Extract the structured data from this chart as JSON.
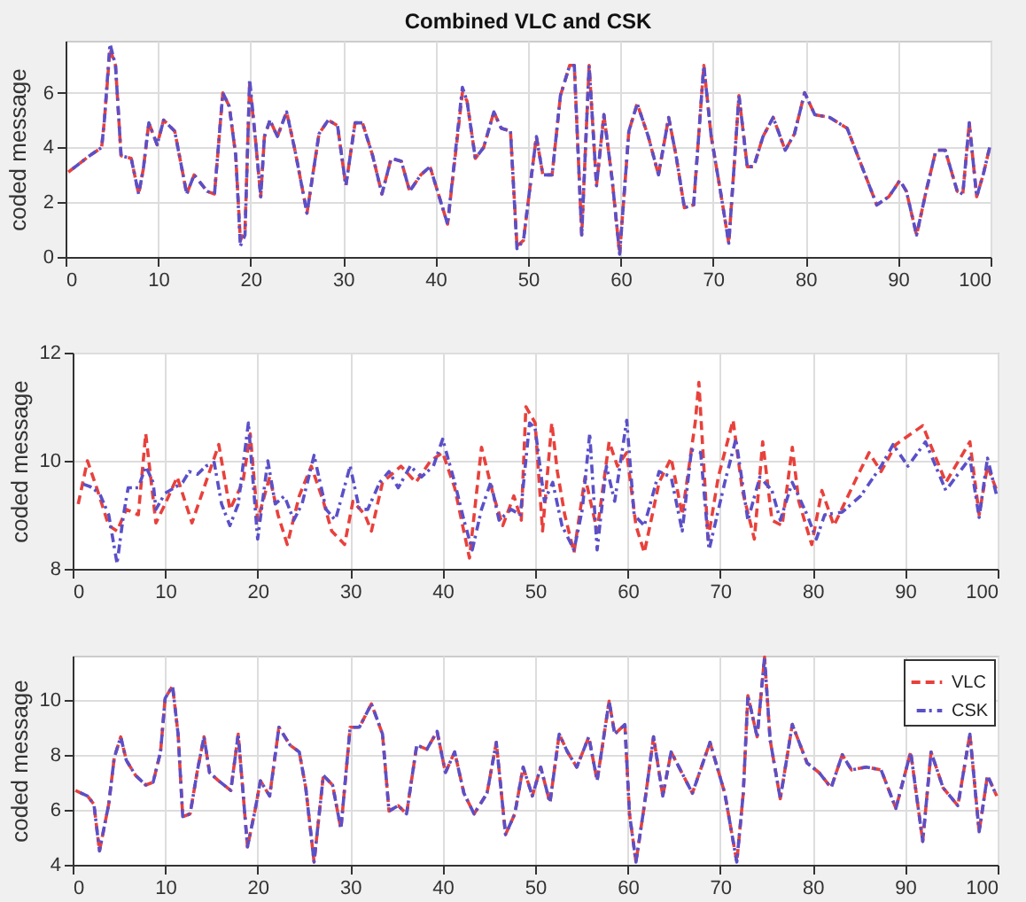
{
  "chart_data": [
    {
      "type": "line",
      "title": "Combined VLC and CSK",
      "ylabel": "coded message",
      "xlim": [
        0,
        100
      ],
      "xticks": [
        0,
        10,
        20,
        30,
        40,
        50,
        60,
        70,
        80,
        90,
        100
      ],
      "ylim": [
        0,
        7.9
      ],
      "yticks": [
        0,
        2,
        4,
        6
      ],
      "grid": true,
      "legend": false,
      "series": [
        {
          "color": "#e8413c",
          "line_style": "dashed",
          "x": [
            0.3,
            2.6,
            3.9,
            4.2,
            4.8,
            5.4,
            6,
            7.1,
            7.9,
            8.4,
            9,
            9.9,
            10.6,
            11.8,
            13.1,
            13.9,
            15.3,
            16.1,
            17,
            17.7,
            18.4,
            18.9,
            19.4,
            19.9,
            20.5,
            21.1,
            21.5,
            22.1,
            22.9,
            23.9,
            24.8,
            26.1,
            27.4,
            28.4,
            29.4,
            30.3,
            31.3,
            32.1,
            33.2,
            34.2,
            35.2,
            36.3,
            37.2,
            38.4,
            39.4,
            41.3,
            42.9,
            43.4,
            44.3,
            45.2,
            46.3,
            47.1,
            48.1,
            48.8,
            49.5,
            50.3,
            50.9,
            51.6,
            52.6,
            53.5,
            54.5,
            55,
            55.8,
            56.6,
            57.4,
            58.2,
            59.1,
            59.9,
            60.9,
            61.8,
            63,
            64.1,
            65.2,
            66,
            66.9,
            67.9,
            69,
            69.8,
            70.8,
            71.7,
            72.8,
            73.7,
            74.4,
            75.4,
            76.5,
            77.8,
            78.8,
            79.9,
            81,
            82.6,
            84.5,
            86.1,
            87.7,
            89,
            90.2,
            90.9,
            92,
            93.1,
            94.1,
            95.1,
            96.4,
            97,
            97.7,
            98.5,
            99.2,
            99.9
          ],
          "values": [
            3.1,
            3.7,
            4.0,
            5.0,
            7.6,
            7.0,
            3.7,
            3.6,
            2.3,
            3.2,
            4.9,
            4.1,
            5.0,
            4.6,
            2.3,
            3.0,
            2.4,
            2.3,
            6.0,
            5.5,
            3.7,
            0.6,
            1.0,
            6.3,
            4.4,
            2.2,
            4.4,
            5.0,
            4.4,
            5.3,
            3.9,
            1.6,
            4.5,
            5.0,
            4.8,
            2.6,
            4.9,
            4.9,
            3.7,
            2.3,
            3.6,
            3.5,
            2.4,
            3.0,
            3.3,
            1.2,
            6.0,
            5.7,
            3.6,
            4.0,
            5.3,
            4.7,
            4.6,
            0.4,
            0.6,
            2.8,
            4.4,
            3.0,
            3.0,
            5.9,
            7.0,
            7.0,
            0.8,
            7.0,
            2.6,
            5.2,
            2.8,
            0.1,
            4.6,
            5.6,
            4.4,
            3.0,
            5.1,
            3.7,
            1.8,
            1.9,
            7.0,
            4.4,
            2.4,
            0.5,
            5.9,
            3.3,
            3.3,
            4.4,
            5.1,
            3.9,
            4.5,
            6.0,
            5.2,
            5.1,
            4.7,
            3.3,
            1.9,
            2.2,
            2.8,
            2.4,
            0.8,
            2.5,
            3.9,
            3.9,
            2.4,
            2.3,
            4.9,
            2.2,
            3.0,
            4.0
          ]
        },
        {
          "color": "#5a50c8",
          "line_style": "dashdot",
          "x": [
            0.3,
            2.6,
            3.9,
            4.2,
            4.8,
            5.4,
            6,
            7.1,
            7.9,
            8.4,
            9,
            9.9,
            10.6,
            11.8,
            13.1,
            13.9,
            15.3,
            16.1,
            17,
            17.7,
            18.4,
            18.9,
            19.4,
            19.9,
            20.5,
            21.1,
            21.5,
            22.1,
            22.9,
            23.9,
            24.8,
            26.1,
            27.4,
            28.4,
            29.4,
            30.3,
            31.3,
            32.1,
            33.2,
            34.2,
            35.2,
            36.3,
            37.2,
            38.4,
            39.4,
            41.3,
            42.9,
            43.4,
            44.3,
            45.2,
            46.3,
            47.1,
            48.1,
            48.8,
            49.5,
            50.3,
            50.9,
            51.6,
            52.6,
            53.5,
            54.5,
            55,
            55.8,
            56.6,
            57.4,
            58.2,
            59.1,
            59.9,
            60.9,
            61.8,
            63,
            64.1,
            65.2,
            66,
            66.9,
            67.9,
            69,
            69.8,
            70.8,
            71.7,
            72.8,
            73.7,
            74.4,
            75.4,
            76.5,
            77.8,
            78.8,
            79.9,
            81,
            82.6,
            84.5,
            86.1,
            87.7,
            89,
            90.2,
            90.9,
            92,
            93.1,
            94.1,
            95.1,
            96.4,
            97,
            97.7,
            98.5,
            99.2,
            99.9
          ],
          "values": [
            3.1,
            3.7,
            4.0,
            5.0,
            7.8,
            7.0,
            3.7,
            3.6,
            2.3,
            3.2,
            4.9,
            4.1,
            5.0,
            4.6,
            2.3,
            3.0,
            2.4,
            2.3,
            6.0,
            5.5,
            3.7,
            0.4,
            0.8,
            6.5,
            4.4,
            2.2,
            4.4,
            5.0,
            4.4,
            5.3,
            3.9,
            1.6,
            4.5,
            5.0,
            4.8,
            2.6,
            4.9,
            4.9,
            3.7,
            2.3,
            3.6,
            3.5,
            2.4,
            3.0,
            3.3,
            1.2,
            6.2,
            5.7,
            3.6,
            4.0,
            5.3,
            4.7,
            4.6,
            0.3,
            0.6,
            2.8,
            4.4,
            3.0,
            3.0,
            5.9,
            7.0,
            7.0,
            0.8,
            7.0,
            2.6,
            5.2,
            2.8,
            0.1,
            4.6,
            5.6,
            4.4,
            3.0,
            5.1,
            3.7,
            1.8,
            1.9,
            7.0,
            4.4,
            2.4,
            0.5,
            5.9,
            3.3,
            3.3,
            4.4,
            5.1,
            3.9,
            4.5,
            6.0,
            5.2,
            5.1,
            4.7,
            3.3,
            1.9,
            2.2,
            2.8,
            2.4,
            0.8,
            2.5,
            3.9,
            3.9,
            2.4,
            2.3,
            4.9,
            2.2,
            3.0,
            4.0
          ]
        }
      ]
    },
    {
      "type": "line",
      "ylabel": "coded message",
      "xlim": [
        0,
        100
      ],
      "xticks": [
        0,
        10,
        20,
        30,
        40,
        50,
        60,
        70,
        80,
        90,
        100
      ],
      "ylim": [
        8,
        12
      ],
      "yticks": [
        8,
        10,
        12
      ],
      "grid": true,
      "legend": false,
      "series": [
        {
          "color": "#e8413c",
          "line_style": "dashed",
          "x": [
            0.6,
            1.6,
            2.6,
            3.9,
            4.8,
            5.8,
            7.1,
            7.9,
            9,
            10,
            11.3,
            12.9,
            13.9,
            15.8,
            17,
            18.4,
            19.2,
            20,
            21.3,
            22.2,
            23.2,
            24.5,
            25.8,
            27.1,
            28,
            29.4,
            30.3,
            31.6,
            32.3,
            33.5,
            35.5,
            37.1,
            38.7,
            40,
            41.3,
            42.9,
            44.2,
            45.5,
            46.5,
            47.7,
            48.5,
            49,
            50,
            50.8,
            51.8,
            52.4,
            53.2,
            54.2,
            55.4,
            56.7,
            58,
            58.9,
            59.9,
            60.9,
            61.8,
            63.4,
            64.7,
            65.9,
            67.3,
            67.7,
            68.7,
            69.8,
            71.4,
            72.4,
            73.7,
            74.6,
            75.6,
            76.7,
            77.8,
            78.5,
            79.9,
            81,
            82.3,
            84.8,
            86.1,
            87.4,
            89,
            91.9,
            94.4,
            97,
            98,
            98.9,
            99.9
          ],
          "values": [
            9.2,
            10.0,
            9.5,
            8.8,
            8.7,
            9.1,
            9.0,
            10.5,
            8.85,
            9.2,
            9.7,
            8.85,
            9.35,
            10.3,
            9.1,
            9.6,
            10.5,
            8.9,
            9.7,
            9.0,
            8.45,
            9.35,
            9.9,
            9.25,
            8.7,
            8.45,
            9.25,
            9.0,
            8.7,
            9.6,
            9.9,
            9.6,
            10.0,
            10.15,
            9.5,
            8.2,
            10.25,
            9.35,
            8.8,
            9.35,
            8.9,
            11.0,
            10.7,
            8.7,
            10.7,
            9.8,
            9.0,
            8.3,
            9.7,
            8.7,
            10.35,
            9.9,
            10.15,
            8.8,
            8.3,
            9.6,
            10.05,
            9.0,
            10.7,
            11.45,
            8.55,
            9.7,
            10.75,
            9.45,
            8.55,
            10.35,
            8.9,
            8.8,
            10.25,
            9.25,
            8.45,
            9.45,
            8.8,
            9.7,
            10.15,
            9.8,
            10.3,
            10.65,
            9.6,
            10.35,
            9.0,
            9.9,
            9.45
          ]
        },
        {
          "color": "#5a50c8",
          "line_style": "dashdot",
          "x": [
            0.6,
            1.9,
            2.9,
            3.9,
            4.8,
            5.5,
            6,
            7.1,
            7.9,
            8.7,
            9,
            10,
            11,
            11.9,
            12.6,
            13.5,
            14.4,
            15.3,
            16.1,
            17,
            17.9,
            19,
            20,
            21.1,
            21.9,
            22.9,
            23.9,
            24.8,
            26.1,
            27.4,
            28.4,
            30,
            31,
            31.9,
            33.2,
            34.2,
            35.2,
            36.5,
            37.7,
            39,
            40,
            41.3,
            42.3,
            43.2,
            44.2,
            45.2,
            46.1,
            47.4,
            48.4,
            49.4,
            50,
            51,
            51.9,
            52.9,
            54.2,
            55.1,
            55.9,
            56.7,
            57.7,
            58.6,
            59.9,
            60.7,
            61.8,
            63.4,
            64.7,
            65.9,
            66.9,
            67.9,
            68.8,
            70.5,
            71.7,
            73,
            74.3,
            75.6,
            76.5,
            77.8,
            79.4,
            80.4,
            81.3,
            83.2,
            85.2,
            87.4,
            88.7,
            90.3,
            92.2,
            94.4,
            97,
            98,
            98.9,
            99.9
          ],
          "values": [
            9.6,
            9.52,
            9.4,
            9.0,
            8.1,
            9.0,
            9.5,
            9.5,
            9.9,
            9.6,
            9.1,
            9.4,
            9.5,
            9.6,
            9.8,
            9.75,
            9.9,
            9.97,
            9.2,
            8.8,
            9.2,
            10.7,
            8.55,
            10.0,
            9.2,
            9.35,
            8.9,
            9.2,
            10.1,
            9.1,
            8.9,
            9.9,
            9.1,
            9.1,
            9.6,
            9.8,
            9.5,
            9.9,
            9.7,
            9.9,
            10.4,
            9.6,
            8.9,
            8.35,
            9.1,
            9.6,
            8.9,
            9.1,
            9.0,
            10.7,
            10.6,
            9.25,
            9.6,
            8.8,
            8.35,
            9.1,
            10.5,
            8.35,
            9.9,
            9.25,
            10.75,
            9.0,
            8.8,
            9.8,
            9.7,
            8.7,
            10.2,
            10.15,
            8.35,
            9.6,
            10.4,
            8.9,
            9.7,
            9.45,
            8.9,
            9.6,
            9.0,
            8.55,
            9.0,
            9.05,
            9.35,
            9.9,
            10.3,
            9.9,
            10.35,
            9.45,
            10.05,
            8.95,
            10.05,
            9.35
          ]
        }
      ]
    },
    {
      "type": "line",
      "ylabel": "coded message",
      "xlim": [
        0,
        100
      ],
      "xticks": [
        0,
        10,
        20,
        30,
        40,
        50,
        60,
        70,
        80,
        90,
        100
      ],
      "ylim": [
        4,
        11.6
      ],
      "yticks": [
        4,
        6,
        8,
        10
      ],
      "grid": true,
      "legend": "top right",
      "series": [
        {
          "name": "VLC",
          "color": "#e8413c",
          "line_style": "dashed",
          "x": [
            0.3,
            1.6,
            2.3,
            2.9,
            3.9,
            4.5,
            5.2,
            5.8,
            6.8,
            7.9,
            8.7,
            9.5,
            10,
            10.8,
            11.4,
            11.9,
            12.7,
            13.5,
            14.2,
            14.8,
            15.8,
            17.1,
            17.9,
            18.9,
            19.7,
            20.3,
            21.3,
            22.3,
            23.5,
            24.5,
            25.2,
            26.1,
            27.1,
            28.1,
            29,
            30,
            31,
            32.3,
            33.5,
            34.2,
            35.2,
            36.1,
            37.2,
            38.3,
            39.4,
            40.3,
            41.3,
            42.3,
            43.4,
            44.8,
            45.8,
            46.8,
            47.8,
            48.7,
            49.7,
            50.6,
            51.6,
            52.6,
            53.5,
            54.5,
            55.8,
            56.7,
            58,
            58.6,
            59.7,
            60.2,
            60.9,
            61.8,
            62.8,
            63.8,
            64.7,
            65.7,
            67,
            68.9,
            70.5,
            71.8,
            72.5,
            73,
            74,
            74.8,
            75.4,
            76.5,
            77.8,
            79.4,
            80.7,
            82,
            83.2,
            84.2,
            85.8,
            87.4,
            89,
            90.6,
            91.9,
            92.8,
            94.1,
            95.7,
            97,
            98,
            98.9,
            99.9
          ],
          "values": [
            6.7,
            6.5,
            6.2,
            4.5,
            6.2,
            7.9,
            8.65,
            7.8,
            7.25,
            6.9,
            7.0,
            8.1,
            10.05,
            10.5,
            8.75,
            5.75,
            5.85,
            7.45,
            8.65,
            7.35,
            7.05,
            6.7,
            8.75,
            4.65,
            5.95,
            7.05,
            6.5,
            9.0,
            8.35,
            8.1,
            6.8,
            4.1,
            7.25,
            6.9,
            5.3,
            9.0,
            9.0,
            9.85,
            8.75,
            5.95,
            6.15,
            5.85,
            8.35,
            8.2,
            8.85,
            7.35,
            8.1,
            6.6,
            5.85,
            6.6,
            8.45,
            5.1,
            5.85,
            7.55,
            6.5,
            7.55,
            6.25,
            8.75,
            8.1,
            7.55,
            8.65,
            7.05,
            9.95,
            8.75,
            9.1,
            5.85,
            4.1,
            6.15,
            8.65,
            6.5,
            8.1,
            7.45,
            6.6,
            8.45,
            6.6,
            4.1,
            6.6,
            10.15,
            8.65,
            11.55,
            8.55,
            6.4,
            9.1,
            7.7,
            7.35,
            6.8,
            8.0,
            7.45,
            7.55,
            7.45,
            6.05,
            8.1,
            4.85,
            8.1,
            6.8,
            6.15,
            8.75,
            5.2,
            7.25,
            6.5
          ]
        },
        {
          "name": "CSK",
          "color": "#5a50c8",
          "line_style": "dashdot",
          "x": [
            0.3,
            1.6,
            2.3,
            2.9,
            3.9,
            4.5,
            5.2,
            5.8,
            6.8,
            7.9,
            8.7,
            9.5,
            10,
            10.8,
            11.4,
            11.9,
            12.7,
            13.5,
            14.2,
            14.8,
            15.8,
            17.1,
            17.9,
            18.9,
            19.7,
            20.3,
            21.3,
            22.3,
            23.5,
            24.5,
            25.2,
            26.1,
            27.1,
            28.1,
            29,
            30,
            31,
            32.3,
            33.5,
            34.2,
            35.2,
            36.1,
            37.2,
            38.3,
            39.4,
            40.3,
            41.3,
            42.3,
            43.4,
            44.8,
            45.8,
            46.8,
            47.8,
            48.7,
            49.7,
            50.6,
            51.6,
            52.6,
            53.5,
            54.5,
            55.8,
            56.7,
            58,
            58.6,
            59.7,
            60.2,
            60.9,
            61.8,
            62.8,
            63.8,
            64.7,
            65.7,
            67,
            68.9,
            70.5,
            71.8,
            72.5,
            73,
            74,
            74.8,
            75.4,
            76.5,
            77.8,
            79.4,
            80.7,
            82,
            83.2,
            84.2,
            85.8,
            87.4,
            89,
            90.6,
            91.9,
            92.8,
            94.1,
            95.7,
            97,
            98,
            98.9,
            99.9
          ],
          "values": [
            6.7,
            6.5,
            6.2,
            4.5,
            6.2,
            7.9,
            8.65,
            7.8,
            7.25,
            6.9,
            7.0,
            8.1,
            10.05,
            10.5,
            8.75,
            5.75,
            5.85,
            7.45,
            8.65,
            7.35,
            7.05,
            6.7,
            8.75,
            4.65,
            5.95,
            7.05,
            6.5,
            9.0,
            8.35,
            8.1,
            6.8,
            4.1,
            7.25,
            6.9,
            5.3,
            9.0,
            9.0,
            9.85,
            8.75,
            5.95,
            6.15,
            5.85,
            8.35,
            8.2,
            8.85,
            7.35,
            8.1,
            6.6,
            5.85,
            6.6,
            8.45,
            5.1,
            5.85,
            7.55,
            6.5,
            7.55,
            6.25,
            8.75,
            8.1,
            7.55,
            8.65,
            7.05,
            9.95,
            8.75,
            9.1,
            5.85,
            4.1,
            6.15,
            8.65,
            6.5,
            8.1,
            7.45,
            6.6,
            8.45,
            6.6,
            4.1,
            6.6,
            10.15,
            8.65,
            11.55,
            8.55,
            6.4,
            9.1,
            7.7,
            7.35,
            6.8,
            8.0,
            7.45,
            7.55,
            7.45,
            6.05,
            8.1,
            4.85,
            8.1,
            6.8,
            6.15,
            8.75,
            5.2,
            7.25,
            6.5
          ]
        }
      ]
    }
  ]
}
